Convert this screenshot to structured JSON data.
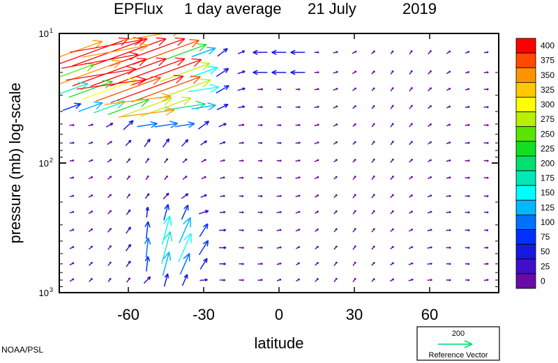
{
  "chart_data": {
    "type": "vector-field",
    "title_parts": [
      "EPFlux",
      "1 day average",
      "21 July",
      "2019"
    ],
    "xlabel": "latitude",
    "ylabel": "pressure (mb)  log-scale",
    "x_ticks": [
      -60,
      -30,
      0,
      30,
      60
    ],
    "x_tick_labels": [
      "-60",
      "-30",
      "0",
      "30",
      "60"
    ],
    "xlim": [
      -87.5,
      87.5
    ],
    "y_scale": "log",
    "ylim": [
      1000,
      10
    ],
    "y_ticks": [
      {
        "base": "10",
        "exp": "1"
      },
      {
        "base": "10",
        "exp": "2"
      },
      {
        "base": "10",
        "exp": "3"
      }
    ],
    "colorbar": {
      "levels": [
        "400",
        "375",
        "350",
        "325",
        "300",
        "275",
        "250",
        "225",
        "200",
        "175",
        "150",
        "125",
        "100",
        "75",
        "50",
        "25",
        "0"
      ],
      "colors": [
        "#ff0000",
        "#ff4a00",
        "#ff9400",
        "#ffc800",
        "#ffff00",
        "#b8f000",
        "#58e600",
        "#10e020",
        "#00e070",
        "#00e8b8",
        "#00ffff",
        "#00b8ff",
        "#0070ff",
        "#0030ff",
        "#1818e0",
        "#4010c8",
        "#6a0aa8"
      ]
    },
    "reference_vector": {
      "magnitude": "200",
      "label": "Reference Vector"
    },
    "credit": "NOAA/PSL",
    "grid": false
  }
}
